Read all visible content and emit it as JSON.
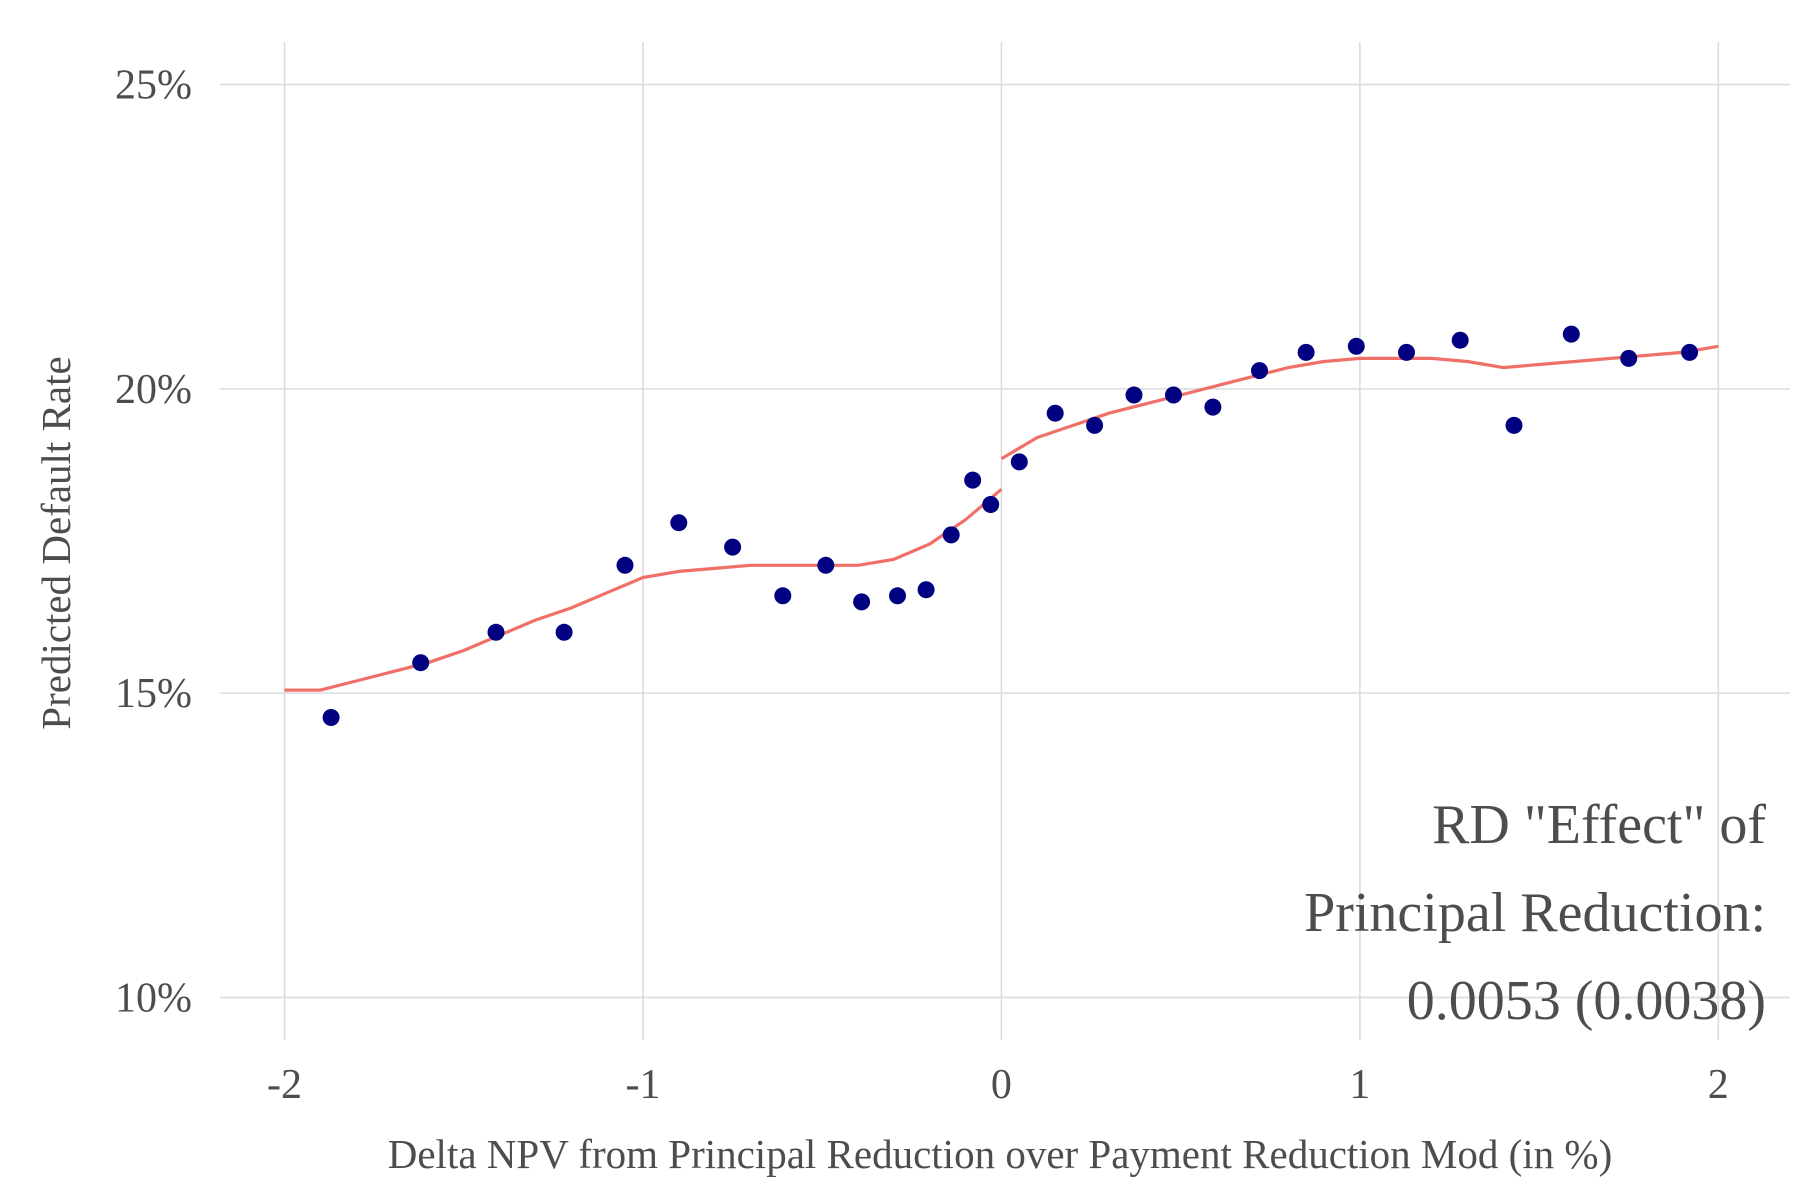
{
  "chart_data": {
    "type": "scatter",
    "xlabel": "Delta NPV from Principal Reduction over Payment Reduction Mod (in %)",
    "ylabel": "Predicted Default Rate",
    "xlim": [
      -2.18,
      2.2
    ],
    "ylim": [
      9.3,
      25.7
    ],
    "xticks": [
      -2,
      -1,
      0,
      1,
      2
    ],
    "xtick_labels": [
      "-2",
      "-1",
      "0",
      "1",
      "2"
    ],
    "yticks": [
      10,
      15,
      20,
      25
    ],
    "ytick_labels": [
      "10%",
      "15%",
      "20%",
      "25%"
    ],
    "grid": true,
    "legend": "none",
    "colors": {
      "points": "#000080",
      "fit": "#f07068",
      "grid": "#dcdcdc",
      "text": "#4d4d4d"
    },
    "annotation": [
      "RD \"Effect\" of",
      "Principal Reduction:",
      "0.0053 (0.0038)"
    ],
    "points": {
      "x": [
        -1.87,
        -1.62,
        -1.41,
        -1.22,
        -1.05,
        -0.9,
        -0.75,
        -0.61,
        -0.49,
        -0.39,
        -0.29,
        -0.21,
        -0.14,
        -0.08,
        -0.03,
        0.05,
        0.15,
        0.26,
        0.37,
        0.48,
        0.59,
        0.72,
        0.85,
        0.99,
        1.13,
        1.28,
        1.43,
        1.59,
        1.75,
        1.92
      ],
      "y": [
        14.6,
        15.5,
        16.0,
        16.0,
        17.1,
        17.8,
        17.4,
        16.6,
        17.1,
        16.5,
        16.6,
        16.7,
        17.6,
        18.5,
        18.1,
        18.8,
        19.6,
        19.4,
        19.9,
        19.9,
        19.7,
        20.3,
        20.6,
        20.7,
        20.6,
        20.8,
        19.4,
        20.9,
        20.5,
        20.6
      ]
    },
    "fit_left": {
      "x": [
        -2.0,
        -1.9,
        -1.8,
        -1.7,
        -1.6,
        -1.5,
        -1.4,
        -1.3,
        -1.2,
        -1.1,
        -1.0,
        -0.9,
        -0.8,
        -0.7,
        -0.6,
        -0.5,
        -0.4,
        -0.3,
        -0.2,
        -0.1,
        0.0
      ],
      "y": [
        15.05,
        15.05,
        15.2,
        15.35,
        15.5,
        15.7,
        15.95,
        16.2,
        16.4,
        16.65,
        16.9,
        17.0,
        17.05,
        17.1,
        17.1,
        17.1,
        17.1,
        17.2,
        17.45,
        17.85,
        18.35
      ]
    },
    "fit_right": {
      "x": [
        0.0,
        0.1,
        0.2,
        0.3,
        0.4,
        0.5,
        0.6,
        0.7,
        0.8,
        0.9,
        1.0,
        1.1,
        1.2,
        1.3,
        1.4,
        1.5,
        1.6,
        1.7,
        1.8,
        1.9,
        2.0
      ],
      "y": [
        18.85,
        19.2,
        19.4,
        19.6,
        19.75,
        19.9,
        20.05,
        20.2,
        20.35,
        20.45,
        20.5,
        20.5,
        20.5,
        20.45,
        20.35,
        20.4,
        20.45,
        20.5,
        20.55,
        20.6,
        20.7
      ]
    }
  }
}
